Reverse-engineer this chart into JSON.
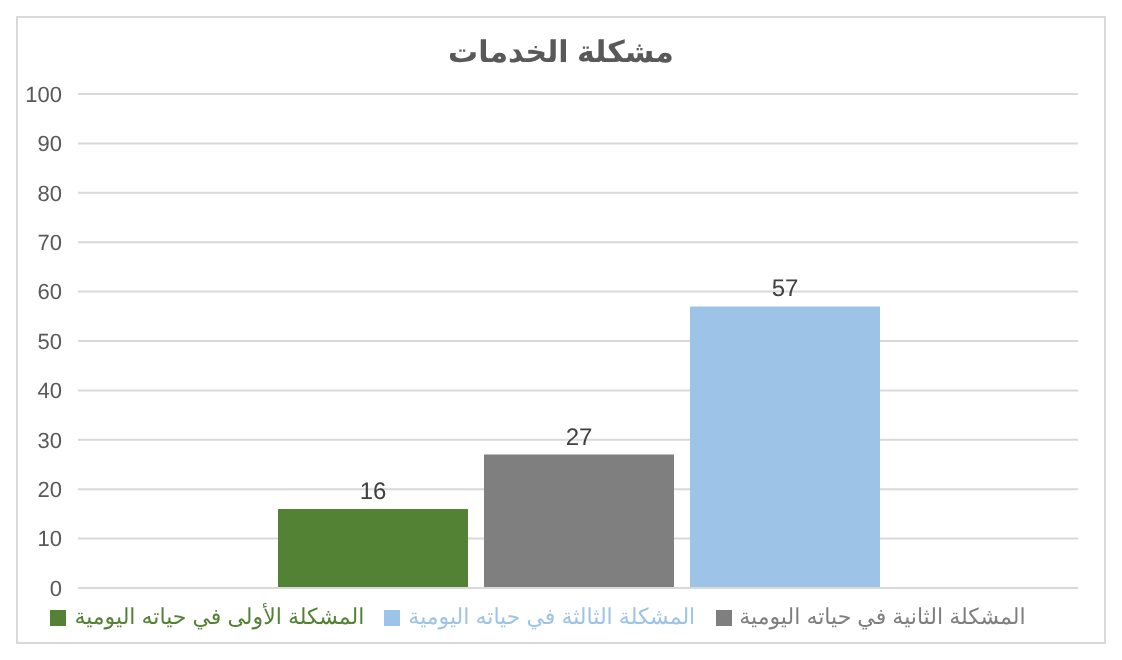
{
  "chart_data": {
    "type": "bar",
    "title": "مشكلة الخدمات",
    "categories": [
      null
    ],
    "series": [
      {
        "name": "المشكلة الأولى في حياته اليومية",
        "color": "#548235",
        "values": [
          16
        ]
      },
      {
        "name": "المشكلة الثانية في حياته اليومية",
        "color": "#7f7f7f",
        "values": [
          27
        ]
      },
      {
        "name": "المشكلة الثالثة في حياته اليومية",
        "color": "#9dc3e6",
        "values": [
          57
        ]
      }
    ],
    "ylim": [
      0,
      100
    ],
    "yticks": [
      0,
      10,
      20,
      30,
      40,
      50,
      60,
      70,
      80,
      90,
      100
    ],
    "grid": "y",
    "legend": "bottom",
    "data_labels": true
  }
}
